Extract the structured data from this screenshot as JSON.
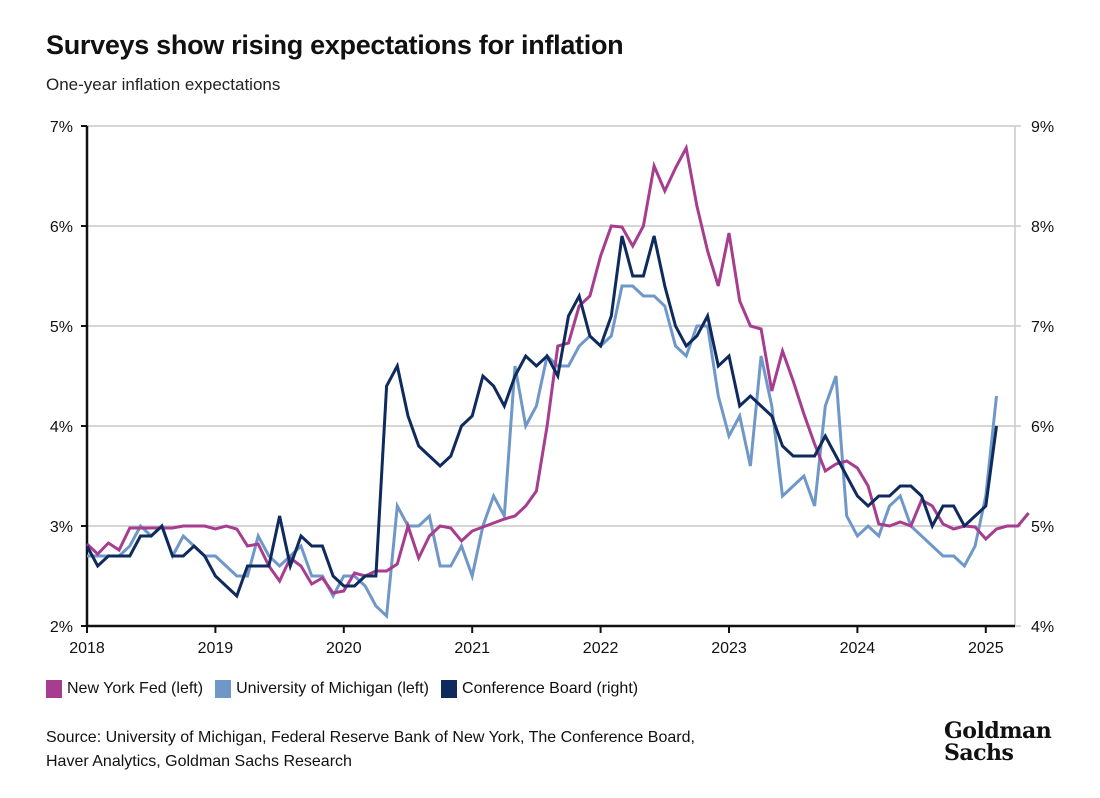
{
  "header": {
    "title": "Surveys show rising expectations for inflation",
    "subtitle": "One-year inflation expectations"
  },
  "legend": [
    {
      "label": "New York Fed (left)",
      "color": "#a63d8f"
    },
    {
      "label": "University of Michigan (left)",
      "color": "#6f98c8"
    },
    {
      "label": "Conference Board (right)",
      "color": "#0f2a5c"
    }
  ],
  "footer": {
    "source_line1": "Source: University of Michigan, Federal Reserve Bank of New York, The Conference Board,",
    "source_line2": "Haver Analytics, Goldman Sachs Research",
    "logo_line1": "Goldman",
    "logo_line2": "Sachs"
  },
  "chart_data": {
    "type": "line",
    "title": "Surveys show rising expectations for inflation",
    "subtitle": "One-year inflation expectations",
    "x_start": "2018-01",
    "x_frequency": "monthly",
    "x_ticks": [
      "2018",
      "2019",
      "2020",
      "2021",
      "2022",
      "2023",
      "2024",
      "2025"
    ],
    "y_left": {
      "ylim": [
        2,
        7
      ],
      "ticks": [
        "2%",
        "3%",
        "4%",
        "5%",
        "6%",
        "7%"
      ]
    },
    "y_right": {
      "ylim": [
        4,
        9
      ],
      "ticks": [
        "4%",
        "5%",
        "6%",
        "7%",
        "8%",
        "9%"
      ]
    },
    "grid": true,
    "legend_position": "bottom-left",
    "series": [
      {
        "name": "New York Fed (left)",
        "axis": "left",
        "color": "#a63d8f",
        "values": [
          2.82,
          2.72,
          2.83,
          2.76,
          2.98,
          2.98,
          2.98,
          2.98,
          2.98,
          3.0,
          3.0,
          3.0,
          2.97,
          3.0,
          2.97,
          2.8,
          2.82,
          2.6,
          2.45,
          2.68,
          2.6,
          2.42,
          2.48,
          2.33,
          2.35,
          2.53,
          2.5,
          2.55,
          2.55,
          2.62,
          3.0,
          2.68,
          2.9,
          3.0,
          2.98,
          2.85,
          2.95,
          2.99,
          3.03,
          3.07,
          3.1,
          3.2,
          3.35,
          4.0,
          4.8,
          4.83,
          5.2,
          5.3,
          5.7,
          6.0,
          5.99,
          5.8,
          6.0,
          6.6,
          6.35,
          6.58,
          6.78,
          6.2,
          5.75,
          5.4,
          5.93,
          5.25,
          5.0,
          4.97,
          4.35,
          4.75,
          4.45,
          4.12,
          3.82,
          3.55,
          3.62,
          3.65,
          3.58,
          3.4,
          3.02,
          3.0,
          3.04,
          3.0,
          3.26,
          3.2,
          3.02,
          2.97,
          3.0,
          2.99,
          2.87,
          2.97,
          3.0,
          3.0,
          3.13
        ]
      },
      {
        "name": "University of Michigan (left)",
        "axis": "left",
        "color": "#6f98c8",
        "values": [
          2.7,
          2.7,
          2.7,
          2.7,
          2.8,
          3.0,
          2.9,
          3.0,
          2.7,
          2.9,
          2.8,
          2.7,
          2.7,
          2.6,
          2.5,
          2.5,
          2.9,
          2.7,
          2.6,
          2.7,
          2.8,
          2.5,
          2.5,
          2.3,
          2.5,
          2.5,
          2.4,
          2.2,
          2.1,
          3.2,
          3.0,
          3.0,
          3.1,
          2.6,
          2.6,
          2.8,
          2.5,
          3.0,
          3.3,
          3.1,
          4.6,
          4.0,
          4.2,
          4.7,
          4.6,
          4.6,
          4.8,
          4.9,
          4.8,
          4.9,
          5.4,
          5.4,
          5.3,
          5.3,
          5.2,
          4.8,
          4.7,
          5.0,
          5.0,
          4.3,
          3.9,
          4.1,
          3.6,
          4.7,
          4.2,
          3.3,
          3.4,
          3.5,
          3.2,
          4.2,
          4.5,
          3.1,
          2.9,
          3.0,
          2.9,
          3.2,
          3.3,
          3.0,
          2.9,
          2.8,
          2.7,
          2.7,
          2.6,
          2.8,
          3.3,
          4.3
        ]
      },
      {
        "name": "Conference Board (right)",
        "axis": "right",
        "color": "#0f2a5c",
        "values": [
          4.8,
          4.6,
          4.7,
          4.7,
          4.7,
          4.9,
          4.9,
          5.0,
          4.7,
          4.7,
          4.8,
          4.7,
          4.5,
          4.4,
          4.3,
          4.6,
          4.6,
          4.6,
          5.1,
          4.6,
          4.9,
          4.8,
          4.8,
          4.5,
          4.4,
          4.4,
          4.5,
          4.5,
          6.4,
          6.6,
          6.1,
          5.8,
          5.7,
          5.6,
          5.7,
          6.0,
          6.1,
          6.5,
          6.4,
          6.2,
          6.5,
          6.7,
          6.6,
          6.7,
          6.5,
          7.1,
          7.3,
          6.9,
          6.8,
          7.1,
          7.9,
          7.5,
          7.5,
          7.9,
          7.4,
          7.0,
          6.8,
          6.9,
          7.1,
          6.6,
          6.7,
          6.2,
          6.3,
          6.2,
          6.1,
          5.8,
          5.7,
          5.7,
          5.7,
          5.9,
          5.7,
          5.5,
          5.3,
          5.2,
          5.3,
          5.3,
          5.4,
          5.4,
          5.3,
          5.0,
          5.2,
          5.2,
          5.0,
          5.1,
          5.2,
          6.0
        ]
      }
    ],
    "annotations": []
  }
}
